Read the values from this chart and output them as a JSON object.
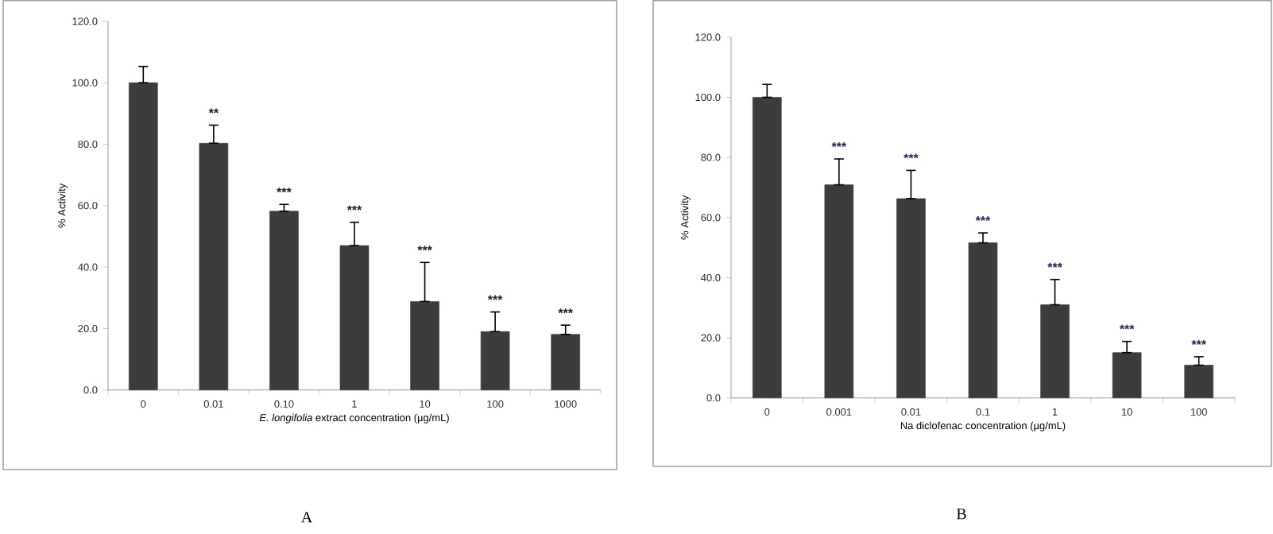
{
  "chart_data": [
    {
      "type": "bar",
      "categories": [
        "0",
        "0.01",
        "0.10",
        "1",
        "10",
        "100",
        "1000"
      ],
      "values": [
        100,
        80.3,
        58.2,
        47,
        28.8,
        19,
        18.1
      ],
      "errors": [
        [
          100,
          105.3
        ],
        [
          80.3,
          86.2
        ],
        [
          58.2,
          60.4
        ],
        [
          47,
          54.6
        ],
        [
          28.8,
          41.5
        ],
        [
          19,
          25.4
        ],
        [
          18.1,
          21.1
        ]
      ],
      "color": "#3c3c3c",
      "xlabel": "*E. longifolia* extract concentration (µg/mL)",
      "ylabel": "% Activity",
      "ylim": [
        0,
        120
      ],
      "yticks": [
        {
          "value": 0,
          "label": "0.0"
        },
        {
          "value": 20,
          "label": "20.0"
        },
        {
          "value": 40,
          "label": "40.0"
        },
        {
          "value": 60,
          "label": "60.0"
        },
        {
          "value": 80,
          "label": "80.0"
        },
        {
          "value": 100,
          "label": "100.0"
        },
        {
          "value": 120,
          "label": "120.0"
        }
      ],
      "annotations": [
        "**",
        "***",
        "***",
        "***",
        "***",
        "***",
        "A"
      ]
    },
    {
      "type": "bar",
      "categories": [
        "0",
        "0.001",
        "0.01",
        "0.1",
        "1",
        "10",
        "100"
      ],
      "values": [
        100,
        70.9,
        66.3,
        51.6,
        31,
        15.1,
        10.9
      ],
      "errors": [
        [
          100,
          104.3
        ],
        [
          70.9,
          79.5
        ],
        [
          66.3,
          75.7
        ],
        [
          51.6,
          54.9
        ],
        [
          31,
          39.4
        ],
        [
          15.1,
          18.8
        ],
        [
          10.9,
          13.7
        ]
      ],
      "color": "#3c3c3c",
      "xlabel": "Na diclofenac concentration (µg/mL)",
      "ylabel": "% Activity",
      "ylim": [
        0,
        120
      ],
      "yticks": [
        {
          "value": 0,
          "label": "0.0"
        },
        {
          "value": 20,
          "label": "20.0"
        },
        {
          "value": 40,
          "label": "40.0"
        },
        {
          "value": 60,
          "label": "60.0"
        },
        {
          "value": 80,
          "label": "80.0"
        },
        {
          "value": 100,
          "label": "100.0"
        },
        {
          "value": 120,
          "label": "120.0"
        }
      ],
      "annotations": [
        "***",
        "***",
        "***",
        "***",
        "***",
        "***",
        "B"
      ]
    }
  ]
}
